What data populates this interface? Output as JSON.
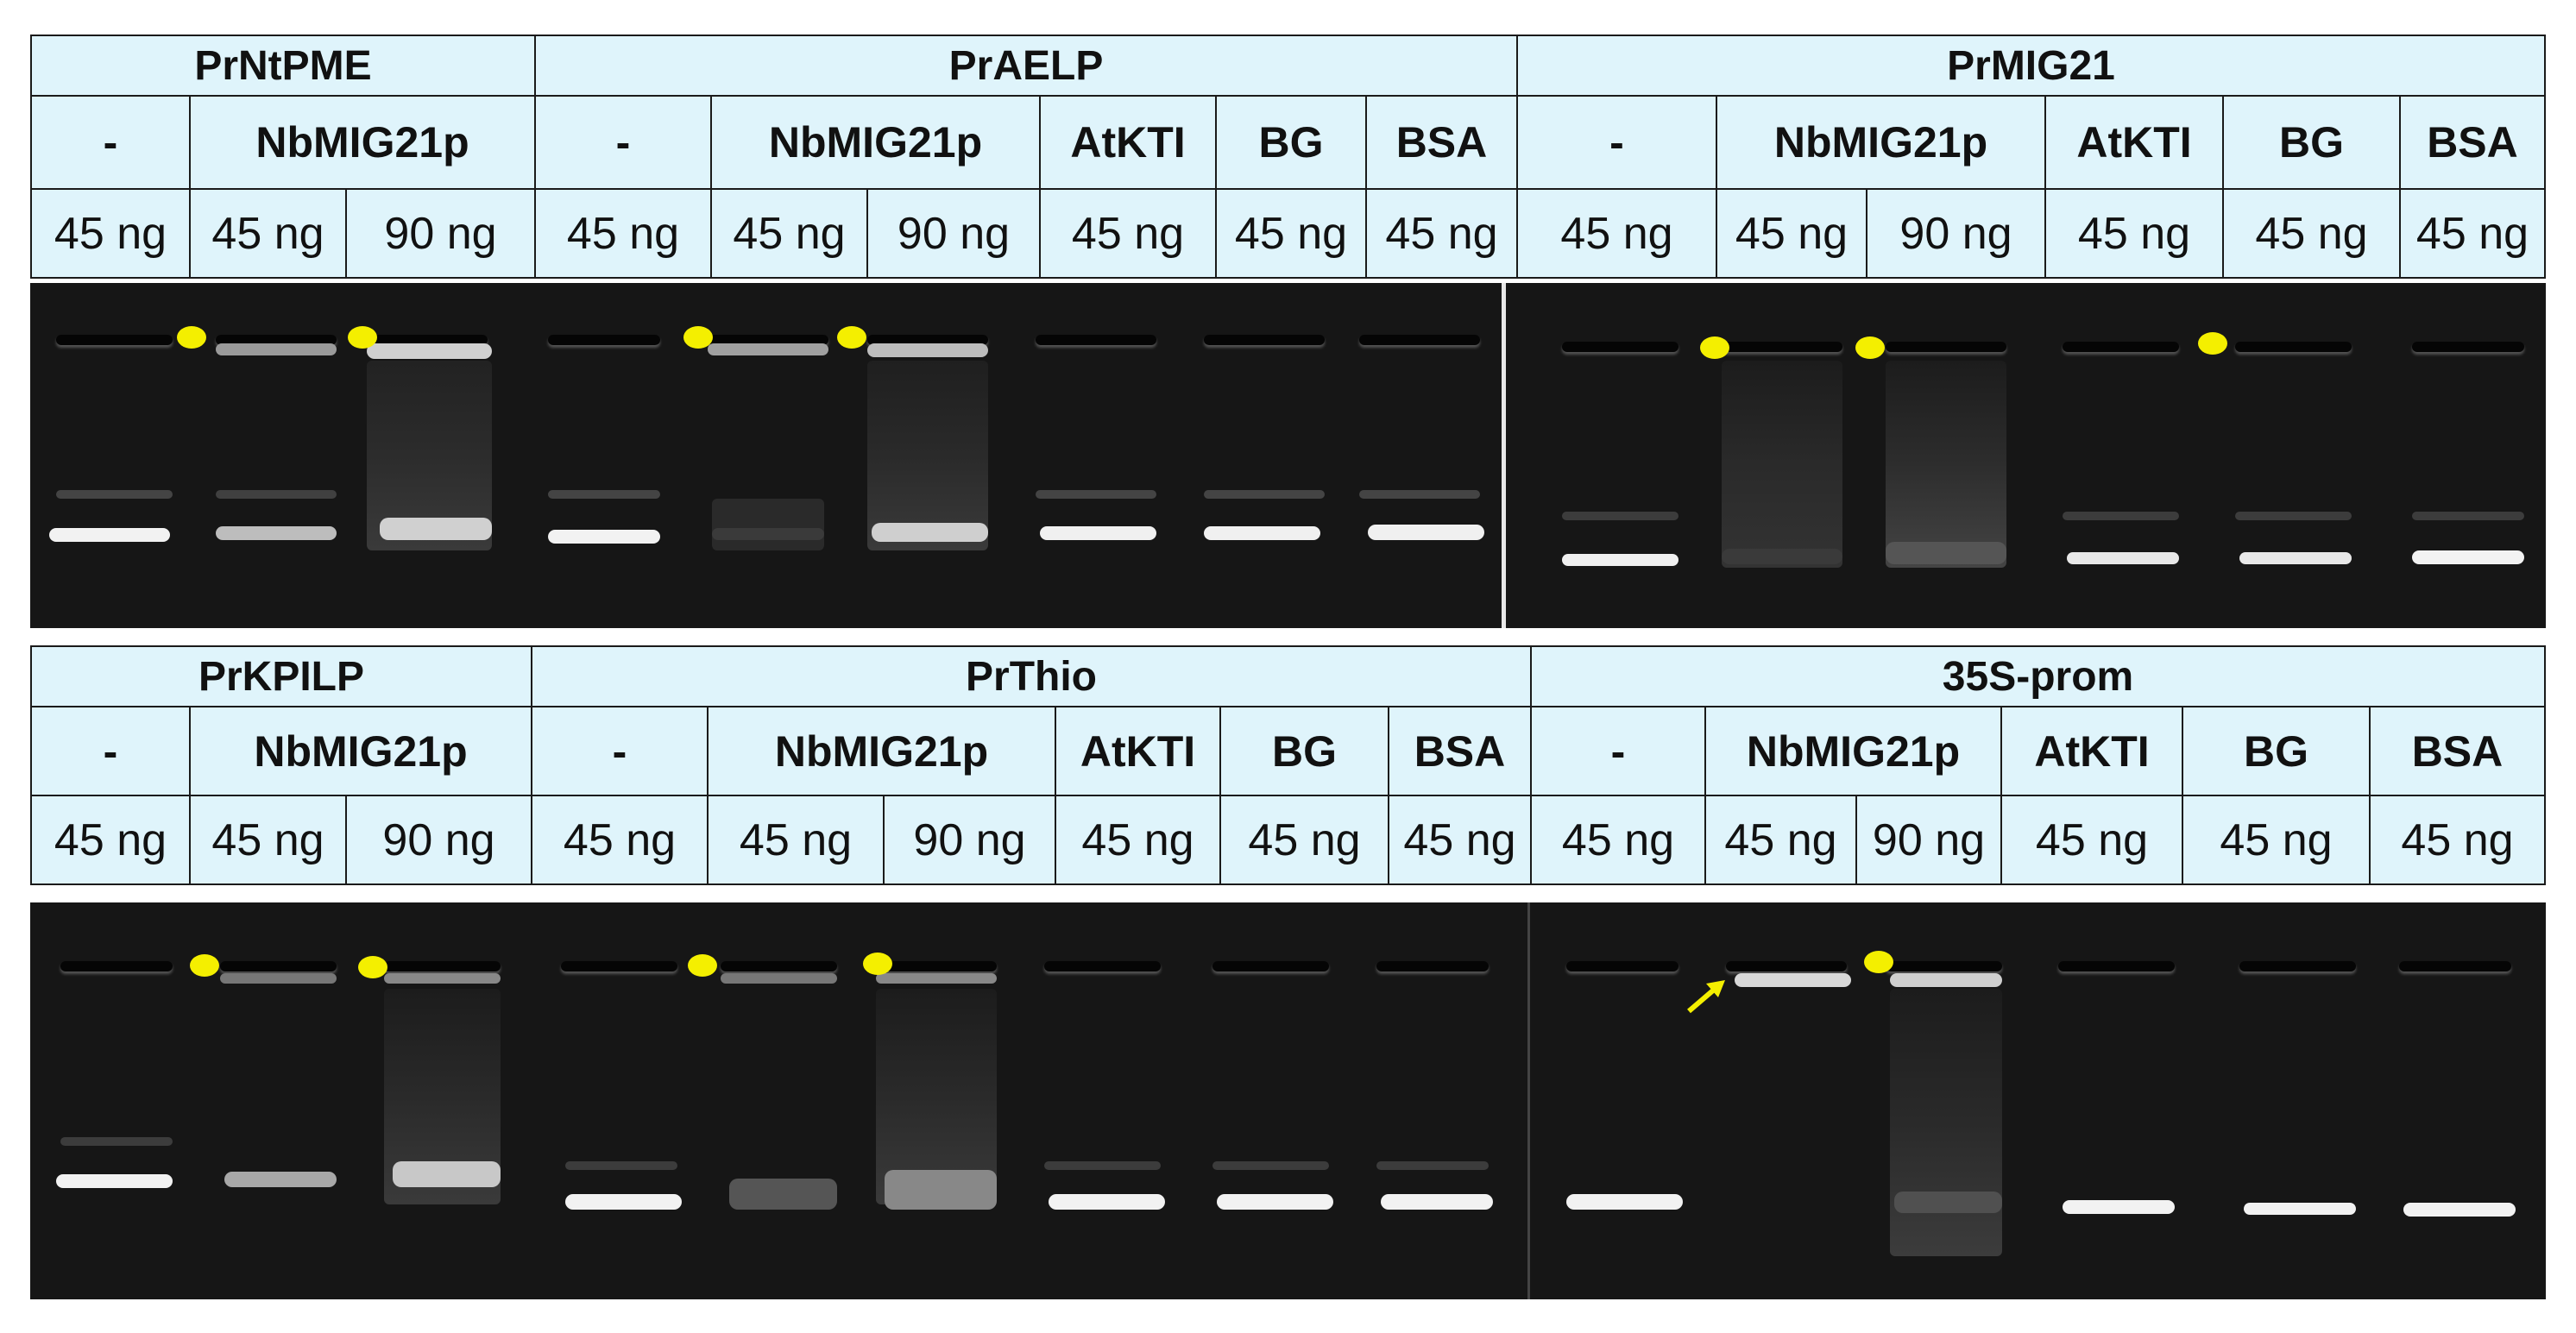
{
  "colors": {
    "header_bg": "#dff4fb",
    "gel_bg": "#161616",
    "marker": "#f4ef00"
  },
  "panels": [
    {
      "groups": [
        {
          "title": "PrNtPME",
          "treatments": [
            "-",
            "NbMIG21p"
          ],
          "amounts": [
            "45 ng",
            "45 ng",
            "90 ng"
          ]
        },
        {
          "title": "PrAELP",
          "treatments": [
            "-",
            "NbMIG21p",
            "AtKTI",
            "BG",
            "BSA"
          ],
          "amounts": [
            "45 ng",
            "45 ng",
            "90 ng",
            "45 ng",
            "45 ng",
            "45 ng"
          ]
        },
        {
          "title": "PrMIG21",
          "treatments": [
            "-",
            "NbMIG21p",
            "AtKTI",
            "BG",
            "BSA"
          ],
          "amounts": [
            "45 ng",
            "45 ng",
            "90 ng",
            "45 ng",
            "45 ng",
            "45 ng"
          ]
        }
      ]
    },
    {
      "groups": [
        {
          "title": "PrKPILP",
          "treatments": [
            "-",
            "NbMIG21p"
          ],
          "amounts": [
            "45 ng",
            "45 ng",
            "90 ng"
          ]
        },
        {
          "title": "PrThio",
          "treatments": [
            "-",
            "NbMIG21p",
            "AtKTI",
            "BG",
            "BSA"
          ],
          "amounts": [
            "45 ng",
            "45 ng",
            "90 ng",
            "45 ng",
            "45 ng",
            "45 ng"
          ]
        },
        {
          "title": "35S-prom",
          "treatments": [
            "-",
            "NbMIG21p",
            "AtKTI",
            "BG",
            "BSA"
          ],
          "amounts": [
            "45 ng",
            "45 ng",
            "90 ng",
            "45 ng",
            "45 ng",
            "45 ng"
          ]
        }
      ]
    }
  ]
}
